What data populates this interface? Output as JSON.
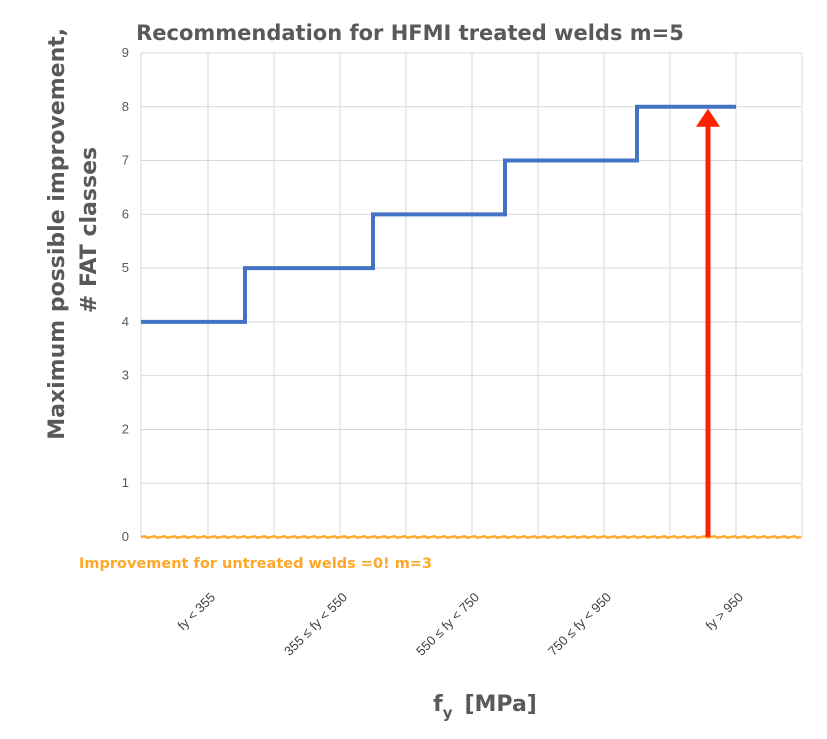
{
  "chart_data": {
    "type": "line",
    "title": "Recommendation for HFMI treated welds m=5",
    "ylabel_line1": "Maximum possible improvement,",
    "ylabel_line2": "# FAT classes",
    "xlabel_main": "f",
    "xlabel_sub": "y",
    "xlabel_unit": "[MPa]",
    "ylim": [
      0,
      9
    ],
    "yticks": [
      0,
      1,
      2,
      3,
      4,
      5,
      6,
      7,
      8,
      9
    ],
    "grid": true,
    "categories": [
      "fy < 355",
      "355 ≤ fy < 550",
      "550 ≤ fy < 750",
      "750 ≤ fy < 950",
      "fy > 950"
    ],
    "series": [
      {
        "values": [
          4,
          5,
          6,
          7,
          8
        ],
        "color": "#4472c4",
        "style": "step"
      },
      {
        "values": [
          0,
          0,
          0,
          0,
          0
        ],
        "color": "#ffa726",
        "style": "flat"
      }
    ],
    "annotations": [
      {
        "text": "Improvement for untreated welds =0! m=3",
        "color": "#ffa726"
      },
      {
        "type": "arrow",
        "category": "fy > 950",
        "from_y": 0,
        "to_y": 8,
        "color": "#ff2200"
      }
    ]
  }
}
